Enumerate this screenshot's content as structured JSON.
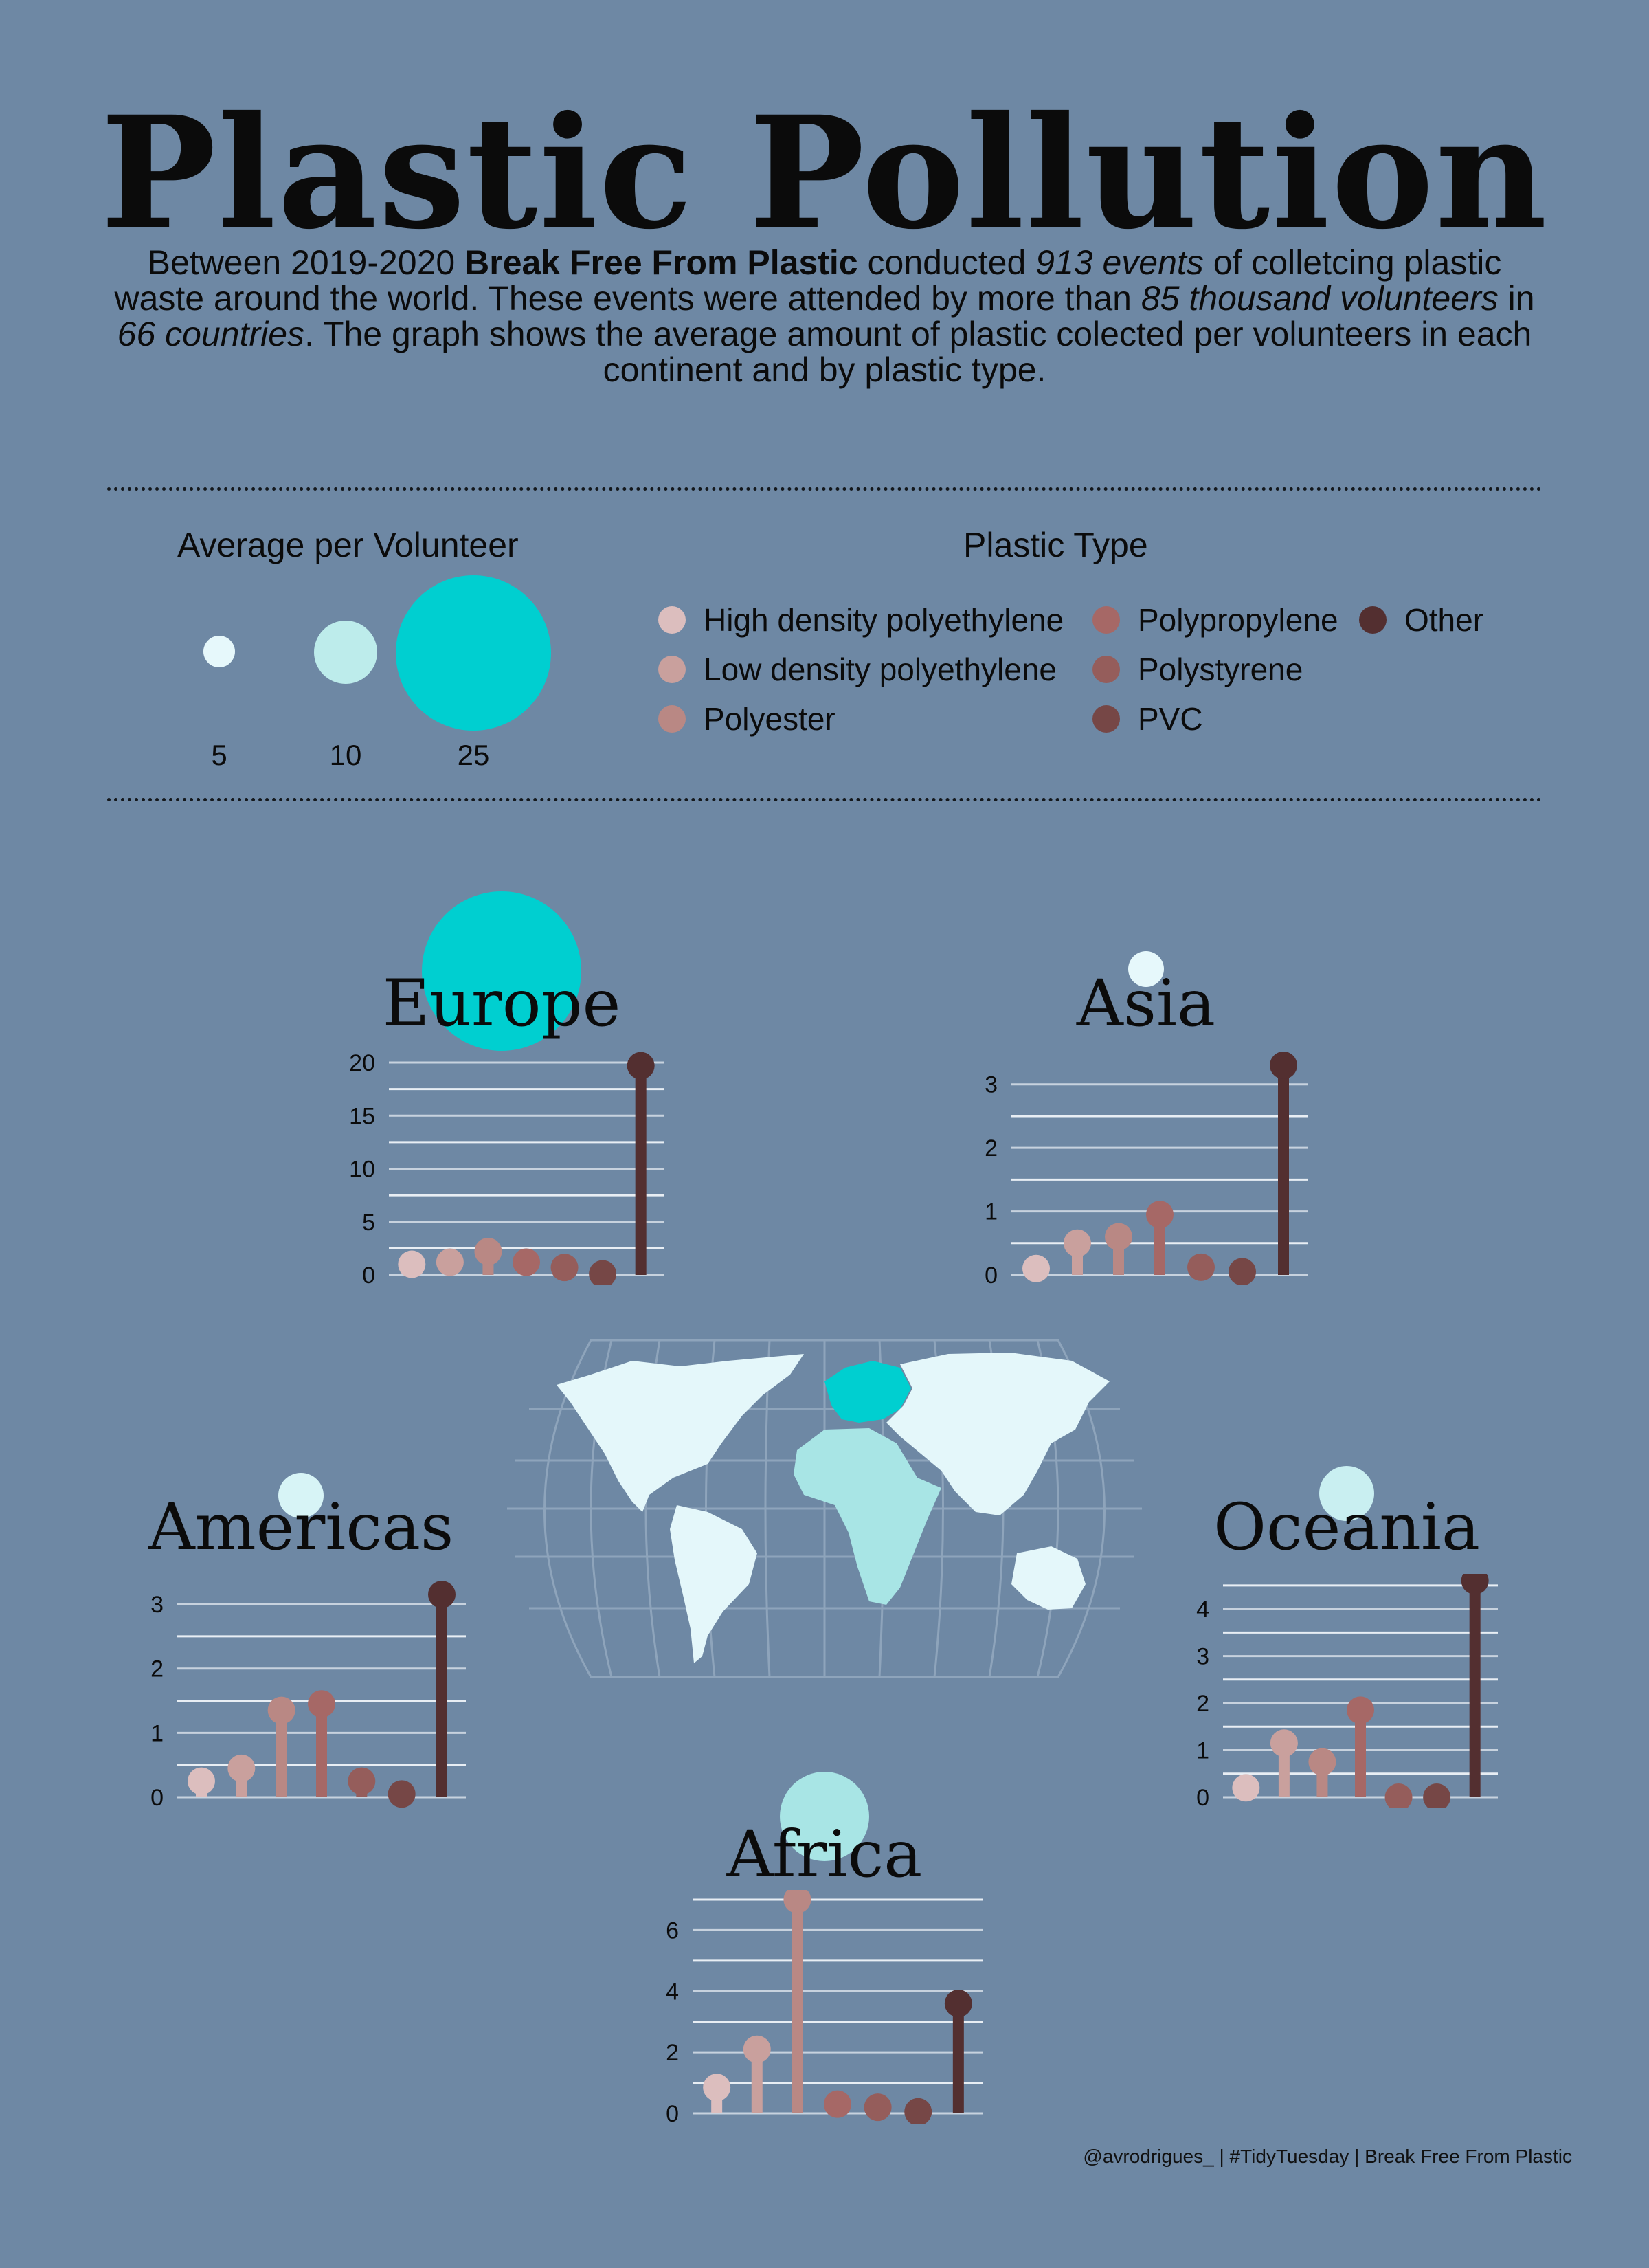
{
  "title": "Plastic Pollution",
  "subtitle": {
    "t1": "Between 2019-2020 ",
    "org": "Break Free From Plastic",
    "t2": " conducted ",
    "events": "913 events",
    "t3": " of colletcing plastic waste around the world. These events were attended by more than ",
    "volunteers": "85 thousand volunteers",
    "t4": " in ",
    "countries": "66 countries",
    "t5": ". The graph shows the average amount of plastic colected per volunteers in each continent and by plastic type."
  },
  "size_legend": {
    "title": "Average per Volunteer",
    "items": [
      {
        "label": "5",
        "value": 5,
        "color": "#e6f8fb"
      },
      {
        "label": "10",
        "value": 10,
        "color": "#bdeceb"
      },
      {
        "label": "25",
        "value": 25,
        "color": "#00cfd0"
      }
    ]
  },
  "type_legend": {
    "title": "Plastic Type",
    "items": [
      {
        "label": "High density polyethylene",
        "color": "#dcbebe"
      },
      {
        "label": "Low density polyethylene",
        "color": "#c9a09d"
      },
      {
        "label": "Polyester",
        "color": "#b98884"
      },
      {
        "label": "Polypropylene",
        "color": "#a66866"
      },
      {
        "label": "Polystyrene",
        "color": "#955d5b"
      },
      {
        "label": "PVC",
        "color": "#764746"
      },
      {
        "label": "Other",
        "color": "#532f30"
      }
    ]
  },
  "continents": {
    "europe": {
      "name": "Europe",
      "avg_label_value": 25,
      "bubble_color": "#00cfd0"
    },
    "asia": {
      "name": "Asia",
      "avg_label_value": 5,
      "bubble_color": "#e6f8fb"
    },
    "americas": {
      "name": "Americas",
      "avg_label_value": 7,
      "bubble_color": "#d7f4f6"
    },
    "oceania": {
      "name": "Oceania",
      "avg_label_value": 8,
      "bubble_color": "#c9eff1"
    },
    "africa": {
      "name": "Africa",
      "avg_label_value": 14,
      "bubble_color": "#a8e5e5"
    }
  },
  "chart_data": [
    {
      "type": "lollipop",
      "title": "Europe",
      "categories": [
        "High density polyethylene",
        "Low density polyethylene",
        "Polyester",
        "Polypropylene",
        "Polystyrene",
        "PVC",
        "Other"
      ],
      "values": [
        1.0,
        1.2,
        2.2,
        1.2,
        0.7,
        0.1,
        19.7
      ],
      "ylim": [
        0,
        20
      ],
      "yticks": [
        "0",
        "5",
        "10",
        "15",
        "20"
      ]
    },
    {
      "type": "lollipop",
      "title": "Asia",
      "categories": [
        "High density polyethylene",
        "Low density polyethylene",
        "Polyester",
        "Polypropylene",
        "Polystyrene",
        "PVC",
        "Other"
      ],
      "values": [
        0.1,
        0.5,
        0.6,
        0.95,
        0.12,
        0.05,
        3.3
      ],
      "ylim": [
        0,
        3.3
      ],
      "yticks": [
        "0",
        "1",
        "2",
        "3"
      ]
    },
    {
      "type": "lollipop",
      "title": "Americas",
      "categories": [
        "High density polyethylene",
        "Low density polyethylene",
        "Polyester",
        "Polypropylene",
        "Polystyrene",
        "PVC",
        "Other"
      ],
      "values": [
        0.25,
        0.45,
        1.35,
        1.45,
        0.25,
        0.05,
        3.15
      ],
      "ylim": [
        0,
        3.3
      ],
      "yticks": [
        "0",
        "1",
        "2",
        "3"
      ]
    },
    {
      "type": "lollipop",
      "title": "Oceania",
      "categories": [
        "High density polyethylene",
        "Low density polyethylene",
        "Polyester",
        "Polypropylene",
        "Polystyrene",
        "PVC",
        "Other"
      ],
      "values": [
        0.2,
        1.15,
        0.75,
        1.85,
        0.0,
        0.0,
        4.6
      ],
      "ylim": [
        0,
        4.6
      ],
      "yticks": [
        "0",
        "1",
        "2",
        "3",
        "4"
      ]
    },
    {
      "type": "lollipop",
      "title": "Africa",
      "categories": [
        "High density polyethylene",
        "Low density polyethylene",
        "Polyester",
        "Polypropylene",
        "Polystyrene",
        "PVC",
        "Other"
      ],
      "values": [
        0.85,
        2.1,
        7.0,
        0.3,
        0.2,
        0.05,
        3.6
      ],
      "ylim": [
        0,
        7.0
      ],
      "yticks": [
        "0",
        "2",
        "4",
        "6"
      ]
    }
  ],
  "credit": "@avrodrigues_  | #TidyTuesday | Break Free From Plastic"
}
